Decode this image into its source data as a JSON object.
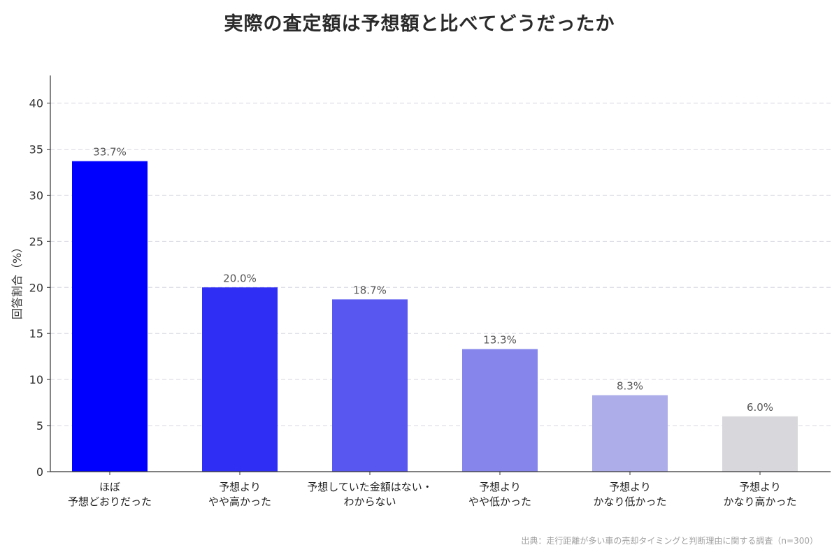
{
  "chart_data": {
    "type": "bar",
    "title": "実際の査定額は予想額と比べてどうだったか",
    "ylabel": "回答割合（%）",
    "xlabel": "",
    "ylim": [
      0,
      43
    ],
    "yticks": [
      0,
      5,
      10,
      15,
      20,
      25,
      30,
      35,
      40
    ],
    "grid": true,
    "categories": [
      "ほぼ\n予想どおりだった",
      "予想より\nやや高かった",
      "予想していた金額はない・\nわからない",
      "予想より\nやや低かった",
      "予想より\nかなり低かった",
      "予想より\nかなり高かった"
    ],
    "values": [
      33.7,
      20.0,
      18.7,
      13.3,
      8.3,
      6.0
    ],
    "data_labels": [
      "33.7%",
      "20.0%",
      "18.7%",
      "13.3%",
      "8.3%",
      "6.0%"
    ],
    "bar_colors": [
      "#0000ff",
      "#2e2ef5",
      "#5858f0",
      "#8585ec",
      "#adadea",
      "#d8d8dc"
    ],
    "source": "出典：走行距離が多い車の売却タイミングと判断理由に関する調査（n=300）"
  }
}
